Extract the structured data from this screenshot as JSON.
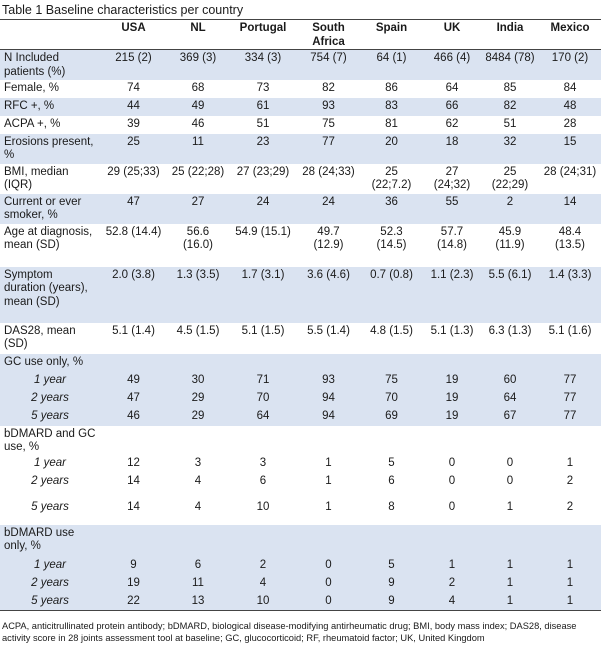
{
  "caption": "Table 1 Baseline characteristics per country",
  "columns": [
    "USA",
    "NL",
    "Portugal",
    "South Africa",
    "Spain",
    "UK",
    "India",
    "Mexico"
  ],
  "rows": [
    {
      "label": "N Included patients (%)",
      "values": [
        "215 (2)",
        "369 (3)",
        "334 (3)",
        "754 (7)",
        "64 (1)",
        "466 (4)",
        "8484 (78)",
        "170 (2)"
      ],
      "shade": true,
      "type": "main"
    },
    {
      "label": "Female, %",
      "values": [
        "74",
        "68",
        "73",
        "82",
        "86",
        "64",
        "85",
        "84"
      ],
      "shade": false,
      "type": "main"
    },
    {
      "label": "RFC +, %",
      "values": [
        "44",
        "49",
        "61",
        "93",
        "83",
        "66",
        "82",
        "48"
      ],
      "shade": true,
      "type": "main"
    },
    {
      "label": "ACPA +, %",
      "values": [
        "39",
        "46",
        "51",
        "75",
        "81",
        "62",
        "51",
        "28"
      ],
      "shade": false,
      "type": "main"
    },
    {
      "label": "Erosions present, %",
      "values": [
        "25",
        "11",
        "23",
        "77",
        "20",
        "18",
        "32",
        "15"
      ],
      "shade": true,
      "type": "main"
    },
    {
      "label": "BMI, median (IQR)",
      "values": [
        "29 (25;33)",
        "25 (22;28)",
        "27 (23;29)",
        "28 (24;33)",
        "25 (22;7.2)",
        "27 (24;32)",
        "25 (22;29)",
        "28 (24;31)"
      ],
      "shade": false,
      "type": "main"
    },
    {
      "label": "Current or ever smoker, %",
      "values": [
        "47",
        "27",
        "24",
        "24",
        "36",
        "55",
        "2",
        "14"
      ],
      "shade": true,
      "type": "main"
    },
    {
      "label": "Age at diagnosis, mean (SD)",
      "values": [
        "52.8 (14.4)",
        "56.6 (16.0)",
        "54.9 (15.1)",
        "49.7 (12.9)",
        "52.3 (14.5)",
        "57.7 (14.8)",
        "45.9 (11.9)",
        "48.4 (13.5)"
      ],
      "shade": false,
      "type": "main"
    },
    {
      "label": "Symptom duration (years), mean (SD)",
      "values": [
        "2.0 (3.8)",
        "1.3 (3.5)",
        "1.7 (3.1)",
        "3.6 (4.6)",
        "0.7 (0.8)",
        "1.1 (2.3)",
        "5.5 (6.1)",
        "1.4 (3.3)"
      ],
      "shade": true,
      "type": "main"
    },
    {
      "label": "DAS28, mean (SD)",
      "values": [
        "5.1 (1.4)",
        "4.5 (1.5)",
        "5.1 (1.5)",
        "5.5 (1.4)",
        "4.8 (1.5)",
        "5.1 (1.3)",
        "6.3 (1.3)",
        "5.1 (1.6)"
      ],
      "shade": false,
      "type": "main"
    },
    {
      "label": "GC use only, %",
      "values": [
        "",
        "",
        "",
        "",
        "",
        "",
        "",
        ""
      ],
      "shade": true,
      "type": "group"
    },
    {
      "label": "1 year",
      "values": [
        "49",
        "30",
        "71",
        "93",
        "75",
        "19",
        "60",
        "77"
      ],
      "shade": true,
      "type": "sub"
    },
    {
      "label": "2 years",
      "values": [
        "47",
        "29",
        "70",
        "94",
        "70",
        "19",
        "64",
        "77"
      ],
      "shade": true,
      "type": "sub"
    },
    {
      "label": "5 years",
      "values": [
        "46",
        "29",
        "64",
        "94",
        "69",
        "19",
        "67",
        "77"
      ],
      "shade": true,
      "type": "sub"
    },
    {
      "label": "bDMARD and GC use, %",
      "values": [
        "",
        "",
        "",
        "",
        "",
        "",
        "",
        ""
      ],
      "shade": false,
      "type": "group"
    },
    {
      "label": "1 year",
      "values": [
        "12",
        "3",
        "3",
        "1",
        "5",
        "0",
        "0",
        "1"
      ],
      "shade": false,
      "type": "sub"
    },
    {
      "label": "2 years",
      "values": [
        "14",
        "4",
        "6",
        "1",
        "6",
        "0",
        "0",
        "2"
      ],
      "shade": false,
      "type": "sub"
    },
    {
      "label": "5 years",
      "values": [
        "14",
        "4",
        "10",
        "1",
        "8",
        "0",
        "1",
        "2"
      ],
      "shade": false,
      "type": "sub"
    },
    {
      "label": "bDMARD use only, %",
      "values": [
        "",
        "",
        "",
        "",
        "",
        "",
        "",
        ""
      ],
      "shade": true,
      "type": "group"
    },
    {
      "label": "1 year",
      "values": [
        "9",
        "6",
        "2",
        "0",
        "5",
        "1",
        "1",
        "1"
      ],
      "shade": true,
      "type": "sub"
    },
    {
      "label": "2 years",
      "values": [
        "19",
        "11",
        "4",
        "0",
        "9",
        "2",
        "1",
        "1"
      ],
      "shade": true,
      "type": "sub"
    },
    {
      "label": "5 years",
      "values": [
        "22",
        "13",
        "10",
        "0",
        "9",
        "4",
        "1",
        "1"
      ],
      "shade": true,
      "type": "sub"
    }
  ],
  "footnote": "ACPA, anticitrullinated protein antibody; bDMARD, biological disease-modifying antirheumatic drug; BMI, body mass index; DAS28, disease activity score in 28 joints assessment tool at baseline; GC, glucocorticoid; RF, rheumatoid factor;  UK, United Kingdom"
}
